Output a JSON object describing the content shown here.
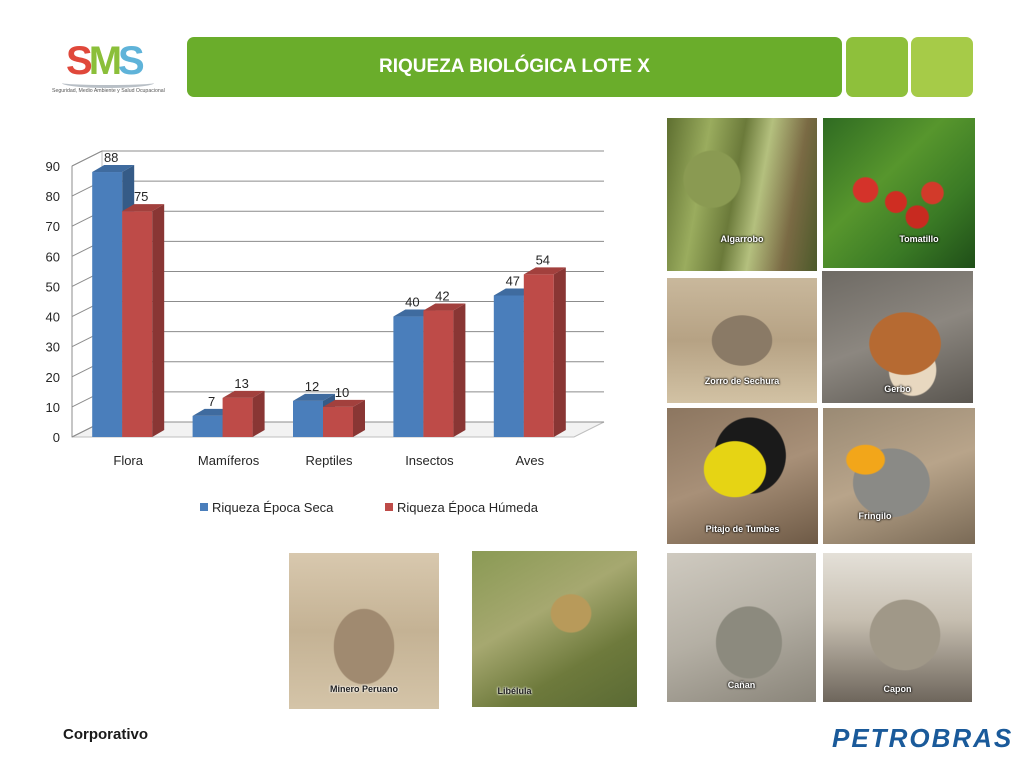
{
  "header": {
    "logo_text_parts": [
      "S",
      "M",
      "S"
    ],
    "logo_subtitle": "Seguridad, Medio Ambiente y Salud Ocupacional",
    "title": "RIQUEZA BIOLÓGICA LOTE X"
  },
  "colors": {
    "title_bar": "#6aad2b",
    "side_bar_1": "#8ec03b",
    "side_bar_2": "#a6cb48",
    "series_seca": "#4a7ebb",
    "series_humeda": "#be4b48",
    "brand_petrobras": "#1a5a9a"
  },
  "chart_data": {
    "type": "bar",
    "style": "3d-clustered",
    "categories": [
      "Flora",
      "Mamíferos",
      "Reptiles",
      "Insectos",
      "Aves"
    ],
    "series": [
      {
        "name": "Riqueza Época Seca",
        "values": [
          88,
          7,
          12,
          40,
          47
        ],
        "color": "#4a7ebb"
      },
      {
        "name": "Riqueza Época Húmeda",
        "values": [
          75,
          13,
          10,
          42,
          54
        ],
        "color": "#be4b48"
      }
    ],
    "ylim": [
      0,
      90
    ],
    "yticks": [
      0,
      10,
      20,
      30,
      40,
      50,
      60,
      70,
      80,
      90
    ],
    "grid": true,
    "legend_position": "bottom",
    "data_labels": true
  },
  "photos": [
    {
      "id": "algarrobo",
      "caption": "Algarrobo"
    },
    {
      "id": "tomatillo",
      "caption": "Tomatillo"
    },
    {
      "id": "zorro",
      "caption": "Zorro de Sechura"
    },
    {
      "id": "gerbo",
      "caption": "Gerbo"
    },
    {
      "id": "pitajo",
      "caption": "Pitajo de Tumbes"
    },
    {
      "id": "fringilo",
      "caption": "Fringilo"
    },
    {
      "id": "canan",
      "caption": "Cañan"
    },
    {
      "id": "capon",
      "caption": "Capon"
    },
    {
      "id": "minero",
      "caption": "Minero Peruano"
    },
    {
      "id": "libelula",
      "caption": "Libélula"
    }
  ],
  "footer": {
    "left": "Corporativo",
    "brand": "PETROBRAS"
  }
}
